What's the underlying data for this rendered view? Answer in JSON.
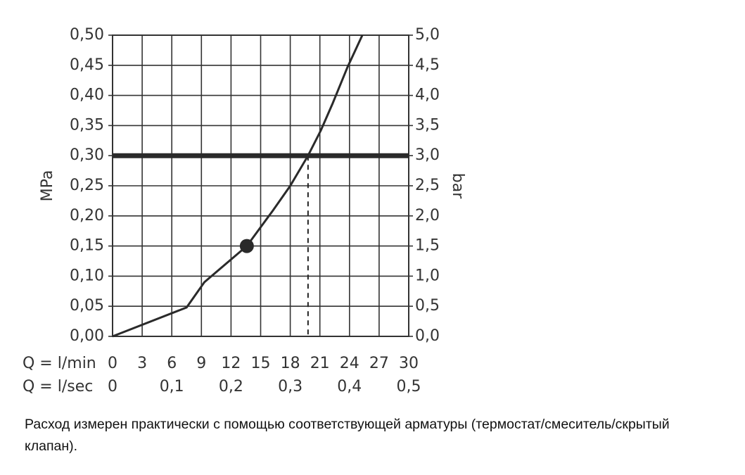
{
  "chart_data": {
    "type": "line",
    "y_label": "MPa",
    "y2_label": "bar",
    "x_label": "Q = l/min",
    "x2_label": "Q = l/sec",
    "xlim": [
      0,
      30
    ],
    "xticks": [
      0,
      3,
      6,
      9,
      12,
      15,
      18,
      21,
      24,
      27,
      30
    ],
    "x2lim": [
      0,
      0.5
    ],
    "x2ticks": [
      0,
      {
        "value": 0.1,
        "label": "0,1"
      },
      {
        "value": 0.2,
        "label": "0,2"
      },
      {
        "value": 0.3,
        "label": "0,3"
      },
      {
        "value": 0.4,
        "label": "0,4"
      },
      {
        "value": 0.5,
        "label": "0,5"
      }
    ],
    "ylim": [
      0,
      0.5
    ],
    "yticks": [
      {
        "value": 0,
        "label": "0,00"
      },
      {
        "value": 0.05,
        "label": "0,05"
      },
      {
        "value": 0.1,
        "label": "0,10"
      },
      {
        "value": 0.15,
        "label": "0,15"
      },
      {
        "value": 0.2,
        "label": "0,20"
      },
      {
        "value": 0.25,
        "label": "0,25"
      },
      {
        "value": 0.3,
        "label": "0,30"
      },
      {
        "value": 0.35,
        "label": "0,35"
      },
      {
        "value": 0.4,
        "label": "0,40"
      },
      {
        "value": 0.45,
        "label": "0,45"
      },
      {
        "value": 0.5,
        "label": "0,50"
      }
    ],
    "y2lim": [
      0,
      5
    ],
    "y2ticks": [
      {
        "value": 0,
        "label": "0,0"
      },
      {
        "value": 0.5,
        "label": "0,5"
      },
      {
        "value": 1,
        "label": "1,0"
      },
      {
        "value": 1.5,
        "label": "1,5"
      },
      {
        "value": 2,
        "label": "2,0"
      },
      {
        "value": 2.5,
        "label": "2,5"
      },
      {
        "value": 3,
        "label": "3,0"
      },
      {
        "value": 3.5,
        "label": "3,5"
      },
      {
        "value": 4,
        "label": "4,0"
      },
      {
        "value": 4.5,
        "label": "4,5"
      },
      {
        "value": 5,
        "label": "5,0"
      }
    ],
    "grid": true,
    "series": [
      {
        "color": "#2a2a2a",
        "x": [
          0,
          7.5,
          9.3,
          13.6,
          16.2,
          18,
          19.8,
          21.1,
          22.3,
          23.8,
          25.3
        ],
        "values": [
          0,
          0.048,
          0.09,
          0.15,
          0.208,
          0.25,
          0.3,
          0.342,
          0.387,
          0.447,
          0.5
        ]
      }
    ],
    "marker": {
      "x": 13.6,
      "y": 0.15
    },
    "hline": 0.3,
    "vline": {
      "x": 19.8,
      "y": 0.3
    },
    "note": "Расход измерен практически с помощью соответствующей арматуры (термостат/смеситель/скрытый клапан)."
  }
}
